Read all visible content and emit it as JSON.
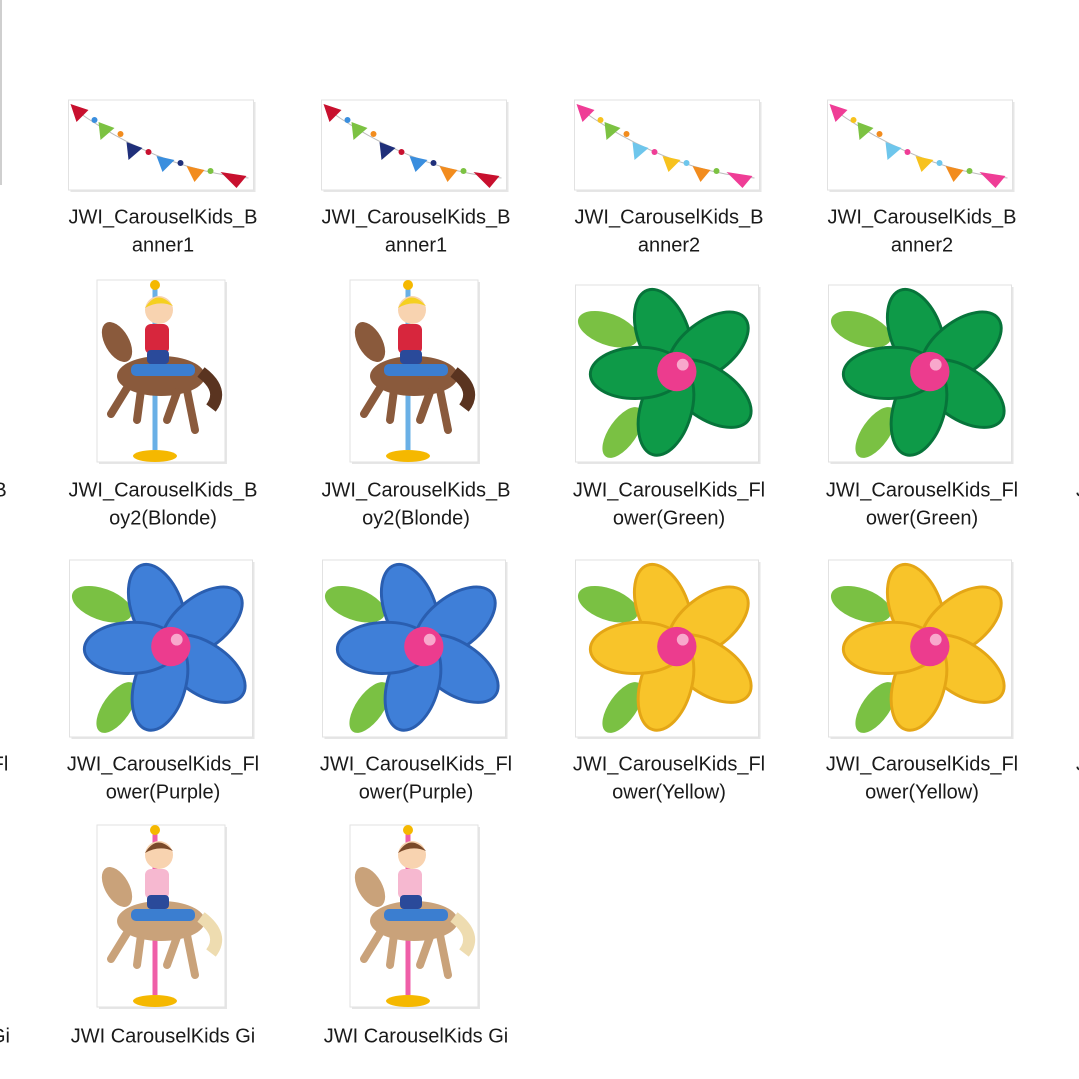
{
  "items": [
    {
      "label": [
        "JWI_CarouselKids_B",
        "anner1"
      ]
    },
    {
      "label": [
        "JWI_CarouselKids_B",
        "anner1"
      ]
    },
    {
      "label": [
        "JWI_CarouselKids_B",
        "anner2"
      ]
    },
    {
      "label": [
        "JWI_CarouselKids_B",
        "anner2"
      ]
    },
    {
      "label": [
        "JWI_CarouselKids_B",
        "oy2(Blonde)"
      ]
    },
    {
      "label": [
        "JWI_CarouselKids_B",
        "oy2(Blonde)"
      ]
    },
    {
      "label": [
        "JWI_CarouselKids_Fl",
        "ower(Green)"
      ]
    },
    {
      "label": [
        "JWI_CarouselKids_Fl",
        "ower(Green)"
      ]
    },
    {
      "label": [
        "JWI_CarouselKids_Fl",
        "ower(Purple)"
      ]
    },
    {
      "label": [
        "JWI_CarouselKids_Fl",
        "ower(Purple)"
      ]
    },
    {
      "label": [
        "JWI_CarouselKids_Fl",
        "ower(Yellow)"
      ]
    },
    {
      "label": [
        "JWI_CarouselKids_Fl",
        "ower(Yellow)"
      ]
    },
    {
      "label": [
        "JWI CarouselKids Gi"
      ]
    },
    {
      "label": [
        "JWI CarouselKids Gi"
      ]
    }
  ],
  "edge_left": [
    "B",
    "Fl",
    "Gi"
  ],
  "edge_right": [
    "J",
    "J"
  ]
}
